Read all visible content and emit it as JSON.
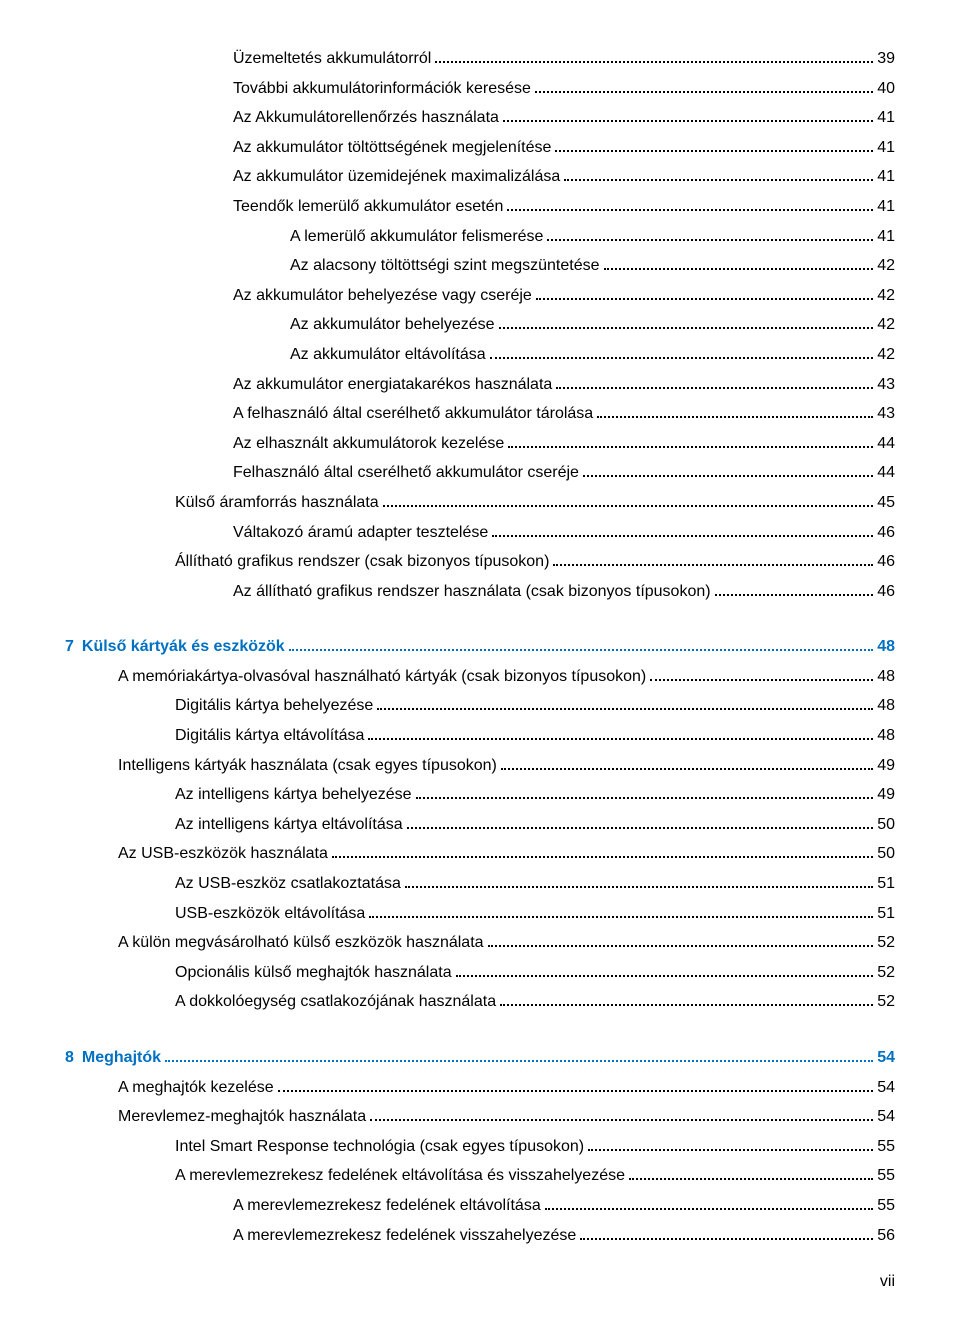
{
  "colors": {
    "text": "#000000",
    "link_blue": "#0070c2",
    "background": "#ffffff",
    "dot_color": "#000000"
  },
  "typography": {
    "body_fontsize_pt": 12,
    "line_height": 1.85,
    "font_family": "Arial"
  },
  "page_number": "vii",
  "toc": [
    {
      "label": "Üzemeltetés akkumulátorról",
      "page": "39",
      "level": 3,
      "chapter": false
    },
    {
      "label": "További akkumulátorinformációk keresése",
      "page": "40",
      "level": 3,
      "chapter": false
    },
    {
      "label": "Az Akkumulátorellenőrzés használata",
      "page": "41",
      "level": 3,
      "chapter": false
    },
    {
      "label": "Az akkumulátor töltöttségének megjelenítése",
      "page": "41",
      "level": 3,
      "chapter": false
    },
    {
      "label": "Az akkumulátor üzemidejének maximalizálása",
      "page": "41",
      "level": 3,
      "chapter": false
    },
    {
      "label": "Teendők lemerülő akkumulátor esetén",
      "page": "41",
      "level": 3,
      "chapter": false
    },
    {
      "label": "A lemerülő akkumulátor felismerése",
      "page": "41",
      "level": 4,
      "chapter": false
    },
    {
      "label": "Az alacsony töltöttségi szint megszüntetése",
      "page": "42",
      "level": 4,
      "chapter": false
    },
    {
      "label": "Az akkumulátor behelyezése vagy cseréje",
      "page": "42",
      "level": 3,
      "chapter": false
    },
    {
      "label": "Az akkumulátor behelyezése",
      "page": "42",
      "level": 4,
      "chapter": false
    },
    {
      "label": "Az akkumulátor eltávolítása",
      "page": "42",
      "level": 4,
      "chapter": false
    },
    {
      "label": "Az akkumulátor energiatakarékos használata",
      "page": "43",
      "level": 3,
      "chapter": false
    },
    {
      "label": "A felhasználó által cserélhető akkumulátor tárolása",
      "page": "43",
      "level": 3,
      "chapter": false
    },
    {
      "label": "Az elhasznált akkumulátorok kezelése",
      "page": "44",
      "level": 3,
      "chapter": false
    },
    {
      "label": "Felhasználó által cserélhető akkumulátor cseréje",
      "page": "44",
      "level": 3,
      "chapter": false
    },
    {
      "label": "Külső áramforrás használata",
      "page": "45",
      "level": 2,
      "chapter": false
    },
    {
      "label": "Váltakozó áramú adapter tesztelése",
      "page": "46",
      "level": 3,
      "chapter": false
    },
    {
      "label": "Állítható grafikus rendszer (csak bizonyos típusokon)",
      "page": "46",
      "level": 2,
      "chapter": false
    },
    {
      "label": "Az állítható grafikus rendszer használata (csak bizonyos típusokon)",
      "page": "46",
      "level": 3,
      "chapter": false
    },
    {
      "label": "Külső kártyák és eszközök",
      "page": "48",
      "level": 0,
      "chapter": true,
      "num": "7"
    },
    {
      "label": "A memóriakártya-olvasóval használható kártyák (csak bizonyos típusokon)",
      "page": "48",
      "level": 1,
      "chapter": false
    },
    {
      "label": "Digitális kártya behelyezése",
      "page": "48",
      "level": 2,
      "chapter": false
    },
    {
      "label": "Digitális kártya eltávolítása",
      "page": "48",
      "level": 2,
      "chapter": false
    },
    {
      "label": "Intelligens kártyák használata (csak egyes típusokon)",
      "page": "49",
      "level": 1,
      "chapter": false
    },
    {
      "label": "Az intelligens kártya behelyezése",
      "page": "49",
      "level": 2,
      "chapter": false
    },
    {
      "label": "Az intelligens kártya eltávolítása",
      "page": "50",
      "level": 2,
      "chapter": false
    },
    {
      "label": "Az USB-eszközök használata",
      "page": "50",
      "level": 1,
      "chapter": false
    },
    {
      "label": "Az USB-eszköz csatlakoztatása",
      "page": "51",
      "level": 2,
      "chapter": false
    },
    {
      "label": "USB-eszközök eltávolítása",
      "page": "51",
      "level": 2,
      "chapter": false
    },
    {
      "label": "A külön megvásárolható külső eszközök használata",
      "page": "52",
      "level": 1,
      "chapter": false
    },
    {
      "label": "Opcionális külső meghajtók használata",
      "page": "52",
      "level": 2,
      "chapter": false
    },
    {
      "label": "A dokkolóegység csatlakozójának használata",
      "page": "52",
      "level": 2,
      "chapter": false
    },
    {
      "label": "Meghajtók",
      "page": "54",
      "level": 0,
      "chapter": true,
      "num": "8"
    },
    {
      "label": "A meghajtók kezelése",
      "page": "54",
      "level": 1,
      "chapter": false
    },
    {
      "label": "Merevlemez-meghajtók használata",
      "page": "54",
      "level": 1,
      "chapter": false
    },
    {
      "label": "Intel Smart Response technológia (csak egyes típusokon)",
      "page": "55",
      "level": 2,
      "chapter": false
    },
    {
      "label": "A merevlemezrekesz fedelének eltávolítása és visszahelyezése",
      "page": "55",
      "level": 2,
      "chapter": false
    },
    {
      "label": "A merevlemezrekesz fedelének eltávolítása",
      "page": "55",
      "level": 3,
      "chapter": false
    },
    {
      "label": "A merevlemezrekesz fedelének visszahelyezése",
      "page": "56",
      "level": 3,
      "chapter": false
    }
  ]
}
